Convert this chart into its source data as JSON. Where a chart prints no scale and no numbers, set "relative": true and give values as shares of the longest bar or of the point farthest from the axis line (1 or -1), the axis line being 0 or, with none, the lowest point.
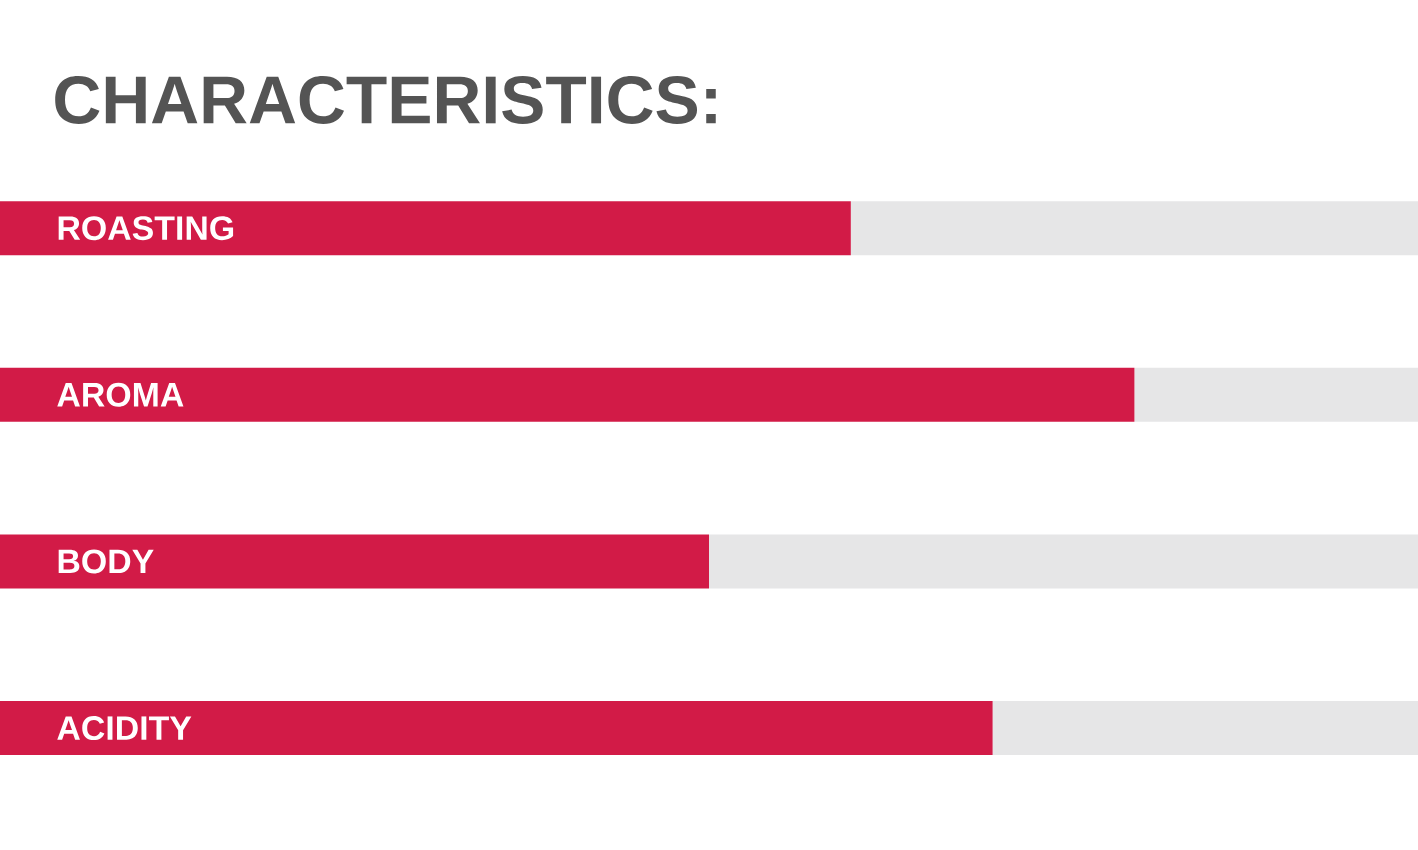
{
  "chart_data": {
    "type": "bar",
    "orientation": "horizontal",
    "stacked": true,
    "relative": true,
    "title": "CHARACTERISTICS:",
    "categories": [
      "ROASTING",
      "AROMA",
      "BODY",
      "ACIDITY"
    ],
    "series": [
      {
        "color": "#d21b47",
        "values": [
          0.6,
          0.8,
          0.5,
          0.7
        ]
      },
      {
        "color": "#e6e6e7",
        "values": [
          0.4,
          0.2,
          0.5,
          0.3
        ]
      }
    ]
  }
}
